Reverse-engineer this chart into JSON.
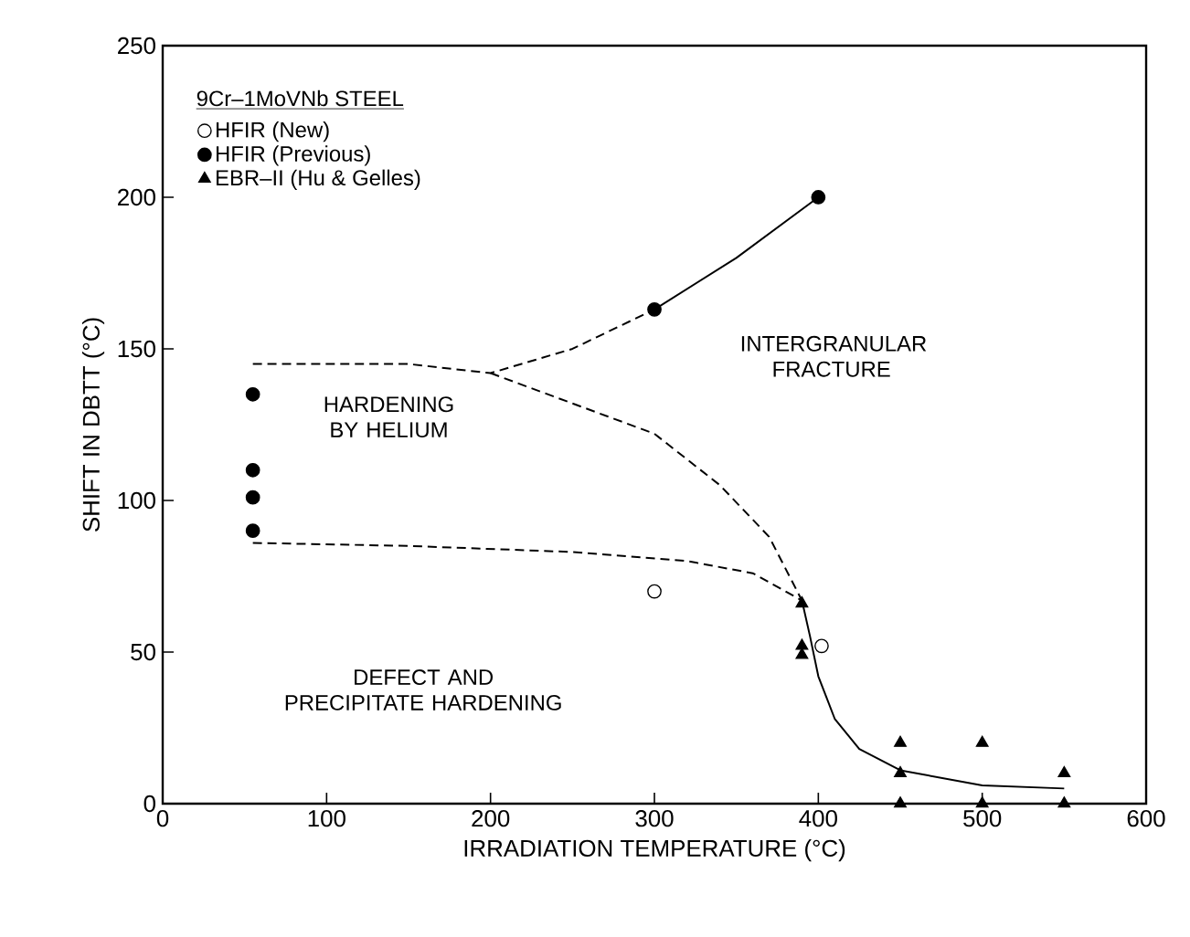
{
  "chart_data": {
    "type": "scatter",
    "xlabel": "IRRADIATION TEMPERATURE (°C)",
    "ylabel": "SHIFT IN DBTT (°C)",
    "legend_title": "9Cr–1MoVNb STEEL",
    "legend": "top left",
    "grid": false,
    "xlim": [
      0,
      600
    ],
    "xticks": [
      0,
      100,
      200,
      300,
      400,
      500,
      600
    ],
    "ylim": [
      0,
      250
    ],
    "yticks": [
      0,
      50,
      100,
      150,
      200,
      250
    ],
    "series": [
      {
        "name": "HFIR (New)",
        "marker": "circle",
        "color": "#ffffff",
        "x": [
          300,
          402
        ],
        "values": [
          70,
          52
        ]
      },
      {
        "name": "HFIR (Previous)",
        "marker": "circle",
        "color": "#000000",
        "x": [
          55,
          55,
          55,
          55,
          300,
          400
        ],
        "values": [
          135,
          110,
          101,
          90,
          163,
          200
        ]
      },
      {
        "name": "EBR–II (Hu & Gelles)",
        "marker": "triangle",
        "color": "#000000",
        "x": [
          390,
          390,
          390,
          450,
          450,
          450,
          500,
          500,
          550,
          550
        ],
        "values": [
          66,
          52,
          49,
          20,
          10,
          0,
          20,
          0,
          10,
          0
        ]
      },
      {
        "type": "line",
        "line_style": "solid",
        "color": "#000000",
        "x": [
          300,
          350,
          400
        ],
        "values": [
          163,
          180,
          200
        ]
      },
      {
        "type": "line",
        "line_style": "solid",
        "color": "#000000",
        "x": [
          390,
          395,
          400,
          410,
          425,
          450,
          500,
          550
        ],
        "values": [
          67,
          55,
          42,
          28,
          18,
          11,
          6,
          5
        ]
      },
      {
        "type": "line",
        "line_style": "dashed",
        "color": "#000000",
        "x": [
          55,
          150,
          200,
          250,
          300
        ],
        "values": [
          145,
          145,
          142,
          150,
          163
        ]
      },
      {
        "type": "line",
        "line_style": "dashed",
        "color": "#000000",
        "x": [
          200,
          250,
          300,
          340,
          370,
          390
        ],
        "values": [
          142,
          132,
          122,
          105,
          88,
          67
        ]
      },
      {
        "type": "line",
        "line_style": "dashed",
        "color": "#000000",
        "x": [
          55,
          150,
          250,
          320,
          360,
          390
        ],
        "values": [
          86,
          85,
          83,
          80,
          76,
          67
        ]
      }
    ],
    "annotations": [
      "INTERGRANULAR FRACTURE",
      "HARDENING BY HELIUM",
      "DEFECT AND PRECIPITATE HARDENING"
    ]
  }
}
